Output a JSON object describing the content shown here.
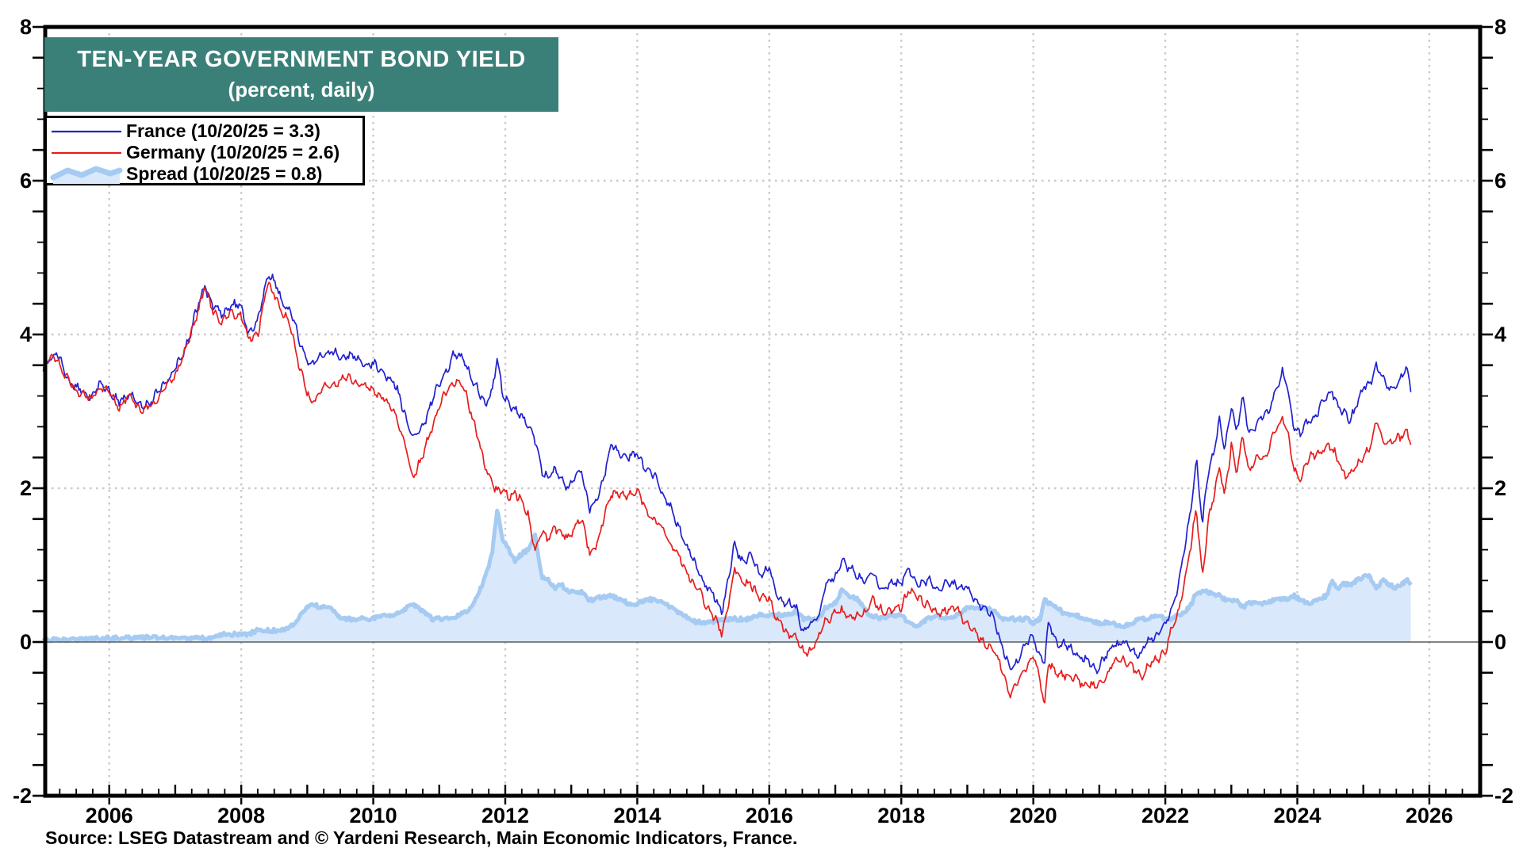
{
  "header": {
    "title": "TEN-YEAR GOVERNMENT BOND YIELD",
    "subtitle": "(percent, daily)",
    "title_bg_color": "#3a8078"
  },
  "legend": {
    "items": [
      {
        "id": "france",
        "label": "France (10/20/25 = 3.3)",
        "swatch": "line",
        "color": "#2121cf"
      },
      {
        "id": "germany",
        "label": "Germany (10/20/25 = 2.6)",
        "swatch": "line",
        "color": "#e81d1d"
      },
      {
        "id": "spread",
        "label": "Spread (10/20/25 = 0.8)",
        "swatch": "area",
        "color": "#a6cbf2",
        "fill": "#d9e9fb"
      }
    ]
  },
  "source": {
    "text": "Source: LSEG Datastream and © Yardeni Research, Main Economic Indicators, France."
  },
  "colors": {
    "france": "#2121cf",
    "germany": "#e81d1d",
    "spread_line": "#a6cbf2",
    "spread_fill": "#d9e9fb",
    "grid": "#c9c9c9",
    "zero_line": "#5a5a5a",
    "axis": "#000000",
    "tick_label": "#000000"
  },
  "chart_data": {
    "type": "line",
    "title": "TEN-YEAR GOVERNMENT BOND YIELD (percent, daily)",
    "xlabel": "",
    "ylabel": "percent",
    "xlim": [
      2005.03,
      2026.77
    ],
    "ylim": [
      -2,
      8
    ],
    "grid": "dotted",
    "legend_position": "top-left",
    "y_major_ticks": [
      -2,
      0,
      2,
      4,
      6,
      8
    ],
    "y_tick_labels": [
      "-2",
      "0",
      "2",
      "4",
      "6",
      "8"
    ],
    "y_minor_step": 0.4,
    "x_label_years": [
      2006,
      2008,
      2010,
      2012,
      2014,
      2016,
      2018,
      2020,
      2022,
      2024,
      2026
    ],
    "x_minor_step": 0.25,
    "h_gridline_values": [
      2,
      4,
      6
    ],
    "zero_line_value": 0,
    "last_date_label": "10/20/25",
    "last_values": {
      "france": 3.3,
      "germany": 2.6,
      "spread": 0.8
    },
    "spread_formula": "france - germany",
    "columns": [
      "year",
      "france",
      "germany"
    ],
    "points": [
      [
        2005.0,
        3.55,
        3.52
      ],
      [
        2005.1,
        3.7,
        3.67
      ],
      [
        2005.2,
        3.75,
        3.72
      ],
      [
        2005.35,
        3.45,
        3.42
      ],
      [
        2005.5,
        3.3,
        3.27
      ],
      [
        2005.7,
        3.2,
        3.15
      ],
      [
        2005.85,
        3.35,
        3.3
      ],
      [
        2006.0,
        3.3,
        3.25
      ],
      [
        2006.15,
        3.1,
        3.05
      ],
      [
        2006.3,
        3.25,
        3.2
      ],
      [
        2006.5,
        3.05,
        3.0
      ],
      [
        2006.65,
        3.15,
        3.08
      ],
      [
        2006.8,
        3.3,
        3.25
      ],
      [
        2007.0,
        3.55,
        3.5
      ],
      [
        2007.15,
        3.8,
        3.75
      ],
      [
        2007.3,
        4.25,
        4.2
      ],
      [
        2007.45,
        4.65,
        4.6
      ],
      [
        2007.55,
        4.4,
        4.35
      ],
      [
        2007.7,
        4.25,
        4.15
      ],
      [
        2007.85,
        4.4,
        4.3
      ],
      [
        2008.0,
        4.35,
        4.25
      ],
      [
        2008.1,
        4.05,
        3.95
      ],
      [
        2008.25,
        4.15,
        4.0
      ],
      [
        2008.4,
        4.8,
        4.65
      ],
      [
        2008.5,
        4.7,
        4.55
      ],
      [
        2008.6,
        4.45,
        4.3
      ],
      [
        2008.75,
        4.3,
        4.1
      ],
      [
        2008.9,
        3.85,
        3.5
      ],
      [
        2009.05,
        3.6,
        3.1
      ],
      [
        2009.2,
        3.7,
        3.25
      ],
      [
        2009.35,
        3.8,
        3.35
      ],
      [
        2009.5,
        3.7,
        3.4
      ],
      [
        2009.65,
        3.75,
        3.45
      ],
      [
        2009.8,
        3.65,
        3.35
      ],
      [
        2010.0,
        3.6,
        3.3
      ],
      [
        2010.15,
        3.5,
        3.15
      ],
      [
        2010.3,
        3.4,
        3.05
      ],
      [
        2010.45,
        3.05,
        2.65
      ],
      [
        2010.6,
        2.65,
        2.15
      ],
      [
        2010.75,
        2.8,
        2.4
      ],
      [
        2010.9,
        3.15,
        2.85
      ],
      [
        2011.05,
        3.45,
        3.15
      ],
      [
        2011.2,
        3.7,
        3.4
      ],
      [
        2011.35,
        3.72,
        3.35
      ],
      [
        2011.5,
        3.4,
        2.95
      ],
      [
        2011.6,
        3.25,
        2.6
      ],
      [
        2011.7,
        3.1,
        2.25
      ],
      [
        2011.8,
        3.25,
        2.1
      ],
      [
        2011.88,
        3.68,
        1.95
      ],
      [
        2011.95,
        3.3,
        1.95
      ],
      [
        2012.05,
        3.1,
        1.9
      ],
      [
        2012.15,
        3.0,
        1.95
      ],
      [
        2012.25,
        2.95,
        1.8
      ],
      [
        2012.35,
        2.85,
        1.65
      ],
      [
        2012.45,
        2.62,
        1.2
      ],
      [
        2012.55,
        2.25,
        1.4
      ],
      [
        2012.65,
        2.15,
        1.35
      ],
      [
        2012.75,
        2.2,
        1.5
      ],
      [
        2012.85,
        2.15,
        1.4
      ],
      [
        2012.95,
        2.0,
        1.35
      ],
      [
        2013.05,
        2.15,
        1.5
      ],
      [
        2013.15,
        2.25,
        1.6
      ],
      [
        2013.28,
        1.72,
        1.18
      ],
      [
        2013.4,
        1.85,
        1.28
      ],
      [
        2013.6,
        2.55,
        1.95
      ],
      [
        2013.75,
        2.45,
        1.9
      ],
      [
        2013.93,
        2.4,
        1.93
      ],
      [
        2014.0,
        2.45,
        1.95
      ],
      [
        2014.15,
        2.25,
        1.7
      ],
      [
        2014.3,
        2.1,
        1.55
      ],
      [
        2014.5,
        1.75,
        1.3
      ],
      [
        2014.7,
        1.35,
        1.0
      ],
      [
        2014.85,
        1.05,
        0.78
      ],
      [
        2015.0,
        0.8,
        0.55
      ],
      [
        2015.15,
        0.6,
        0.35
      ],
      [
        2015.28,
        0.4,
        0.1
      ],
      [
        2015.4,
        0.9,
        0.6
      ],
      [
        2015.47,
        1.25,
        0.95
      ],
      [
        2015.6,
        1.05,
        0.75
      ],
      [
        2015.7,
        1.1,
        0.8
      ],
      [
        2015.85,
        0.9,
        0.55
      ],
      [
        2016.0,
        0.95,
        0.6
      ],
      [
        2016.1,
        0.65,
        0.3
      ],
      [
        2016.25,
        0.5,
        0.15
      ],
      [
        2016.4,
        0.45,
        0.05
      ],
      [
        2016.52,
        0.15,
        -0.15
      ],
      [
        2016.62,
        0.2,
        -0.1
      ],
      [
        2016.75,
        0.35,
        0.05
      ],
      [
        2016.85,
        0.75,
        0.3
      ],
      [
        2017.0,
        0.85,
        0.35
      ],
      [
        2017.1,
        1.08,
        0.4
      ],
      [
        2017.2,
        0.95,
        0.35
      ],
      [
        2017.35,
        0.85,
        0.3
      ],
      [
        2017.5,
        0.8,
        0.45
      ],
      [
        2017.55,
        0.9,
        0.55
      ],
      [
        2017.7,
        0.7,
        0.4
      ],
      [
        2017.85,
        0.75,
        0.4
      ],
      [
        2018.0,
        0.8,
        0.45
      ],
      [
        2018.1,
        0.95,
        0.7
      ],
      [
        2018.25,
        0.75,
        0.55
      ],
      [
        2018.4,
        0.8,
        0.5
      ],
      [
        2018.55,
        0.7,
        0.35
      ],
      [
        2018.7,
        0.75,
        0.45
      ],
      [
        2018.85,
        0.75,
        0.4
      ],
      [
        2019.0,
        0.7,
        0.25
      ],
      [
        2019.1,
        0.55,
        0.1
      ],
      [
        2019.25,
        0.45,
        0.0
      ],
      [
        2019.4,
        0.3,
        -0.1
      ],
      [
        2019.55,
        -0.1,
        -0.4
      ],
      [
        2019.65,
        -0.4,
        -0.7
      ],
      [
        2019.75,
        -0.25,
        -0.55
      ],
      [
        2019.9,
        0.0,
        -0.3
      ],
      [
        2020.0,
        0.05,
        -0.2
      ],
      [
        2020.1,
        -0.15,
        -0.45
      ],
      [
        2020.17,
        -0.3,
        -0.85
      ],
      [
        2020.23,
        0.25,
        -0.25
      ],
      [
        2020.35,
        0.0,
        -0.45
      ],
      [
        2020.5,
        -0.05,
        -0.4
      ],
      [
        2020.65,
        -0.15,
        -0.5
      ],
      [
        2020.8,
        -0.25,
        -0.55
      ],
      [
        2020.95,
        -0.35,
        -0.6
      ],
      [
        2021.1,
        -0.2,
        -0.45
      ],
      [
        2021.2,
        -0.05,
        -0.3
      ],
      [
        2021.35,
        0.0,
        -0.2
      ],
      [
        2021.5,
        -0.1,
        -0.35
      ],
      [
        2021.62,
        -0.15,
        -0.45
      ],
      [
        2021.75,
        0.0,
        -0.3
      ],
      [
        2021.85,
        0.1,
        -0.25
      ],
      [
        2022.0,
        0.2,
        -0.1
      ],
      [
        2022.1,
        0.45,
        0.15
      ],
      [
        2022.2,
        0.75,
        0.4
      ],
      [
        2022.3,
        1.25,
        0.85
      ],
      [
        2022.4,
        1.8,
        1.3
      ],
      [
        2022.47,
        2.4,
        1.75
      ],
      [
        2022.56,
        1.5,
        0.85
      ],
      [
        2022.65,
        2.2,
        1.55
      ],
      [
        2022.75,
        2.55,
        1.95
      ],
      [
        2022.82,
        2.9,
        2.3
      ],
      [
        2022.9,
        2.45,
        1.9
      ],
      [
        2023.0,
        3.1,
        2.55
      ],
      [
        2023.08,
        2.75,
        2.2
      ],
      [
        2023.17,
        3.15,
        2.7
      ],
      [
        2023.27,
        2.7,
        2.2
      ],
      [
        2023.4,
        2.9,
        2.4
      ],
      [
        2023.55,
        2.95,
        2.45
      ],
      [
        2023.65,
        3.25,
        2.7
      ],
      [
        2023.78,
        3.5,
        2.95
      ],
      [
        2023.87,
        3.2,
        2.65
      ],
      [
        2023.95,
        2.8,
        2.2
      ],
      [
        2024.05,
        2.7,
        2.15
      ],
      [
        2024.15,
        2.85,
        2.35
      ],
      [
        2024.3,
        3.0,
        2.45
      ],
      [
        2024.45,
        3.15,
        2.55
      ],
      [
        2024.52,
        3.3,
        2.5
      ],
      [
        2024.6,
        3.1,
        2.4
      ],
      [
        2024.7,
        2.95,
        2.2
      ],
      [
        2024.8,
        2.9,
        2.15
      ],
      [
        2024.9,
        3.1,
        2.3
      ],
      [
        2025.0,
        3.3,
        2.45
      ],
      [
        2025.1,
        3.35,
        2.5
      ],
      [
        2025.2,
        3.6,
        2.9
      ],
      [
        2025.3,
        3.4,
        2.6
      ],
      [
        2025.4,
        3.3,
        2.55
      ],
      [
        2025.5,
        3.35,
        2.65
      ],
      [
        2025.58,
        3.45,
        2.7
      ],
      [
        2025.66,
        3.55,
        2.75
      ],
      [
        2025.72,
        3.32,
        2.57
      ]
    ]
  }
}
